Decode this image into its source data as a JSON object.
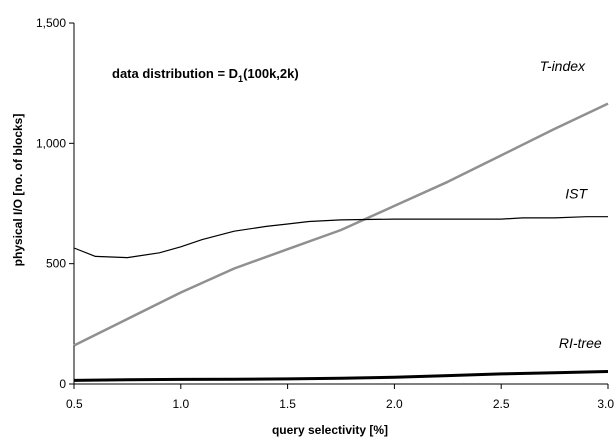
{
  "chart_data": {
    "type": "line",
    "annotation": {
      "prefix": "data distribution = D",
      "subscript": "1",
      "suffix": "(100k,2k)"
    },
    "xlabel": "query selectivity [%]",
    "ylabel": "physical I/O [no. of blocks]",
    "xlim": [
      0.5,
      3.0
    ],
    "ylim": [
      0,
      1500
    ],
    "xticks": [
      0.5,
      1.0,
      1.5,
      2.0,
      2.5,
      3.0
    ],
    "xtick_labels": [
      "0.5",
      "1.0",
      "1.5",
      "2.0",
      "2.5",
      "3.0"
    ],
    "yticks": [
      0,
      500,
      1000,
      1500
    ],
    "ytick_labels": [
      "0",
      "500",
      "1,000",
      "1,500"
    ],
    "grid": false,
    "series": [
      {
        "name": "T-index",
        "color": "#909090",
        "x": [
          0.5,
          0.75,
          1.0,
          1.25,
          1.5,
          1.75,
          2.0,
          2.25,
          2.5,
          2.75,
          3.0
        ],
        "values": [
          160,
          270,
          380,
          480,
          560,
          640,
          740,
          840,
          950,
          1060,
          1165
        ]
      },
      {
        "name": "IST",
        "color": "#000000",
        "x": [
          0.5,
          0.6,
          0.75,
          0.9,
          1.0,
          1.1,
          1.25,
          1.4,
          1.5,
          1.6,
          1.75,
          2.0,
          2.25,
          2.5,
          2.6,
          2.75,
          2.9,
          3.0
        ],
        "values": [
          565,
          530,
          525,
          545,
          570,
          600,
          635,
          655,
          665,
          675,
          682,
          685,
          685,
          685,
          690,
          690,
          695,
          695
        ]
      },
      {
        "name": "RI-tree",
        "color": "#000000",
        "x": [
          0.5,
          0.75,
          1.0,
          1.25,
          1.5,
          1.75,
          2.0,
          2.25,
          2.5,
          2.75,
          3.0
        ],
        "values": [
          15,
          18,
          19,
          20,
          21,
          24,
          28,
          35,
          42,
          47,
          52
        ]
      }
    ]
  }
}
